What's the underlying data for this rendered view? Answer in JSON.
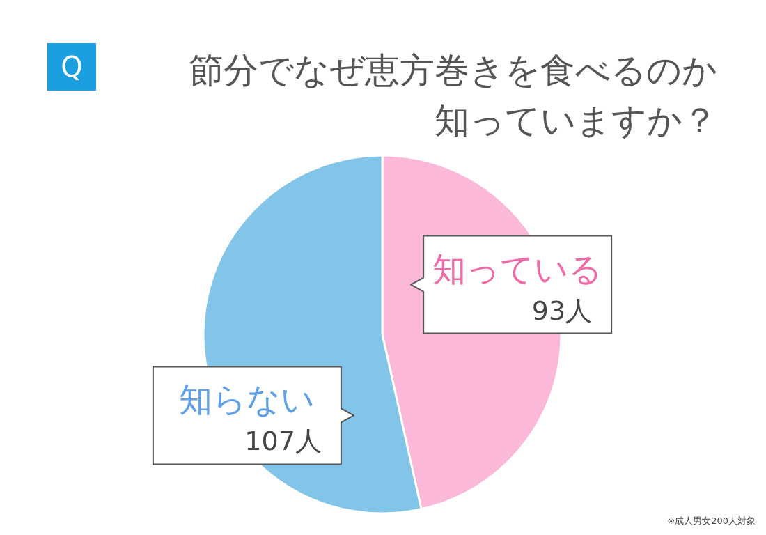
{
  "chart_data": {
    "type": "pie",
    "title": "節分でなぜ恵方巻きを食べるのか知っていますか？",
    "categories": [
      "知っている",
      "知らない"
    ],
    "values": [
      93,
      107
    ],
    "colors": [
      "#fbb8d8",
      "#82c5e8"
    ],
    "value_labels": [
      "93人",
      "107人"
    ],
    "annotations": [
      "Q",
      "※成人男女200人対象"
    ]
  }
}
